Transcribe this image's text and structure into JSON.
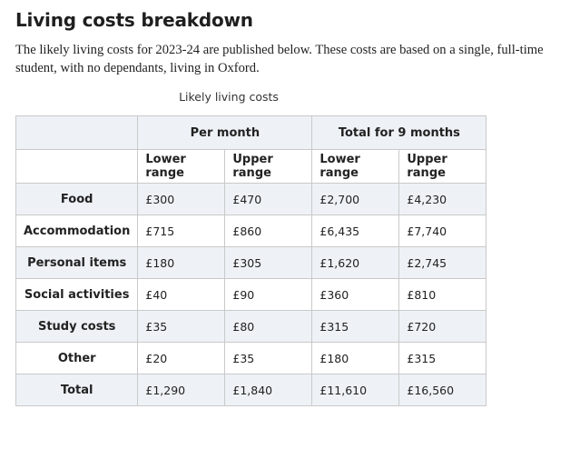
{
  "heading": "Living costs breakdown",
  "intro": "The likely living costs for 2023-24 are published below. These costs are based on a single, full-time student, with no dependants, living in Oxford.",
  "table": {
    "caption": "Likely living costs",
    "groups": [
      "Per month",
      "Total for 9 months"
    ],
    "subheaders": [
      "Lower range",
      "Upper range",
      "Lower range",
      "Upper range"
    ],
    "rows": [
      {
        "label": "Food",
        "values": [
          "£300",
          "£470",
          "£2,700",
          "£4,230"
        ]
      },
      {
        "label": "Accommodation",
        "values": [
          "£715",
          "£860",
          "£6,435",
          "£7,740"
        ]
      },
      {
        "label": "Personal items",
        "values": [
          "£180",
          "£305",
          "£1,620",
          "£2,745"
        ]
      },
      {
        "label": "Social activities",
        "values": [
          "£40",
          "£90",
          "£360",
          "£810"
        ]
      },
      {
        "label": "Study costs",
        "values": [
          "£35",
          "£80",
          "£315",
          "£720"
        ]
      },
      {
        "label": "Other",
        "values": [
          "£20",
          "£35",
          "£180",
          "£315"
        ]
      },
      {
        "label": "Total",
        "values": [
          "£1,290",
          "£1,840",
          "£11,610",
          "£16,560"
        ]
      }
    ]
  },
  "colors": {
    "shaded_row": "#eef2f6",
    "border": "#c9c9c9"
  }
}
